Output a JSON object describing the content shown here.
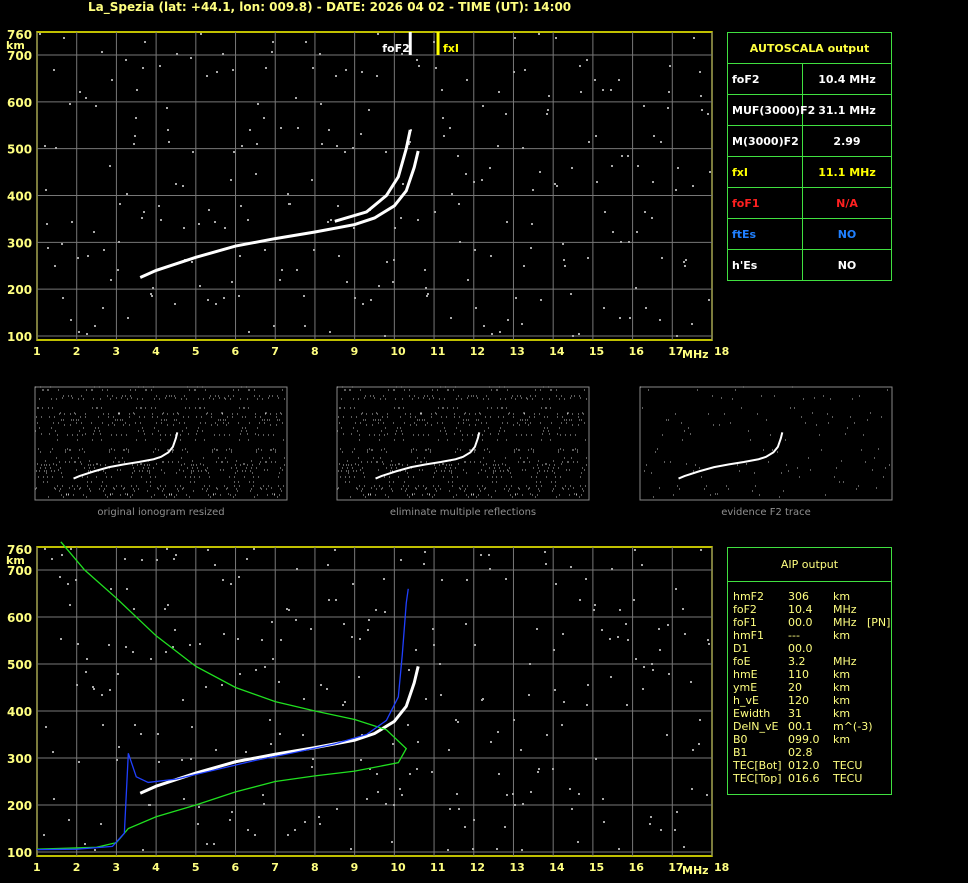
{
  "title": "La_Spezia (lat: +44.1, lon: 009.8) - DATE: 2026 04 02 - TIME (UT): 14:00",
  "autoscala": {
    "header": "AUTOSCALA output",
    "rows": [
      {
        "key": "foF2",
        "value": "10.4 MHz",
        "color": "#ffffff"
      },
      {
        "key": "MUF(3000)F2",
        "value": "31.1 MHz",
        "color": "#ffffff"
      },
      {
        "key": "M(3000)F2",
        "value": "2.99",
        "color": "#ffffff"
      },
      {
        "key": "fxI",
        "value": "11.1 MHz",
        "color": "#ffff00"
      },
      {
        "key": "foF1",
        "value": "N/A",
        "color": "#ff2020"
      },
      {
        "key": "ftEs",
        "value": "NO",
        "color": "#2080ff"
      },
      {
        "key": "h'Es",
        "value": "NO",
        "color": "#ffffff"
      }
    ]
  },
  "aip": {
    "header": "AIP output",
    "rows": [
      [
        "hmF2",
        "306",
        "km",
        ""
      ],
      [
        "foF2",
        "10.4",
        "MHz",
        ""
      ],
      [
        "foF1",
        "00.0",
        "MHz",
        "[PN]"
      ],
      [
        "hmF1",
        "---",
        "km",
        ""
      ],
      [
        "D1",
        "00.0",
        "",
        ""
      ],
      [
        "foE",
        "3.2",
        "MHz",
        ""
      ],
      [
        "hmE",
        "110",
        "km",
        ""
      ],
      [
        "ymE",
        "20",
        "km",
        ""
      ],
      [
        "h_vE",
        "120",
        "km",
        ""
      ],
      [
        "Ewidth",
        "31",
        "km",
        ""
      ],
      [
        "DelN_vE",
        "00.1",
        "m^(-3)",
        ""
      ],
      [
        "B0",
        "099.0",
        "km",
        ""
      ],
      [
        "B1",
        "02.8",
        "",
        ""
      ],
      [
        "TEC[Bot]",
        "012.0",
        "TECU",
        ""
      ],
      [
        "TEC[Top]",
        "016.6",
        "TECU",
        ""
      ]
    ]
  },
  "captions": [
    "original ionogram resized",
    "eliminate multiple reflections",
    "evidence F2 trace"
  ],
  "chart_data": [
    {
      "type": "scatter",
      "xlabel": "MHz",
      "ylabel": "km",
      "xlim": [
        1,
        18
      ],
      "ylim": [
        100,
        760
      ],
      "xticks": [
        "1",
        "2",
        "3",
        "4",
        "5",
        "6",
        "7",
        "8",
        "9",
        "10",
        "11",
        "12",
        "13",
        "14",
        "15",
        "16",
        "17",
        "18"
      ],
      "yticks": [
        "100",
        "200",
        "300",
        "400",
        "500",
        "600",
        "700",
        "760"
      ],
      "grid": true,
      "markers": [
        {
          "label": "foF2",
          "x": 10.4,
          "color": "#ffffff"
        },
        {
          "label": "fxI",
          "x": 11.1,
          "color": "#ffff00"
        }
      ],
      "traces": [
        {
          "color": "#ffffff",
          "points": [
            [
              3.6,
              225
            ],
            [
              4,
              240
            ],
            [
              5,
              268
            ],
            [
              6,
              292
            ],
            [
              7,
              308
            ],
            [
              8,
              322
            ],
            [
              9,
              338
            ],
            [
              9.5,
              352
            ],
            [
              10,
              378
            ],
            [
              10.3,
              410
            ],
            [
              10.5,
              460
            ],
            [
              10.6,
              495
            ]
          ]
        },
        {
          "color": "#ffffff",
          "points": [
            [
              8.5,
              345
            ],
            [
              9.3,
              365
            ],
            [
              9.8,
              400
            ],
            [
              10.1,
              440
            ],
            [
              10.3,
              500
            ],
            [
              10.4,
              540
            ]
          ]
        }
      ]
    },
    {
      "type": "line",
      "xlabel": "MHz",
      "ylabel": "km",
      "xlim": [
        1,
        18
      ],
      "ylim": [
        100,
        760
      ],
      "xticks": [
        "1",
        "2",
        "3",
        "4",
        "5",
        "6",
        "7",
        "8",
        "9",
        "10",
        "11",
        "12",
        "13",
        "14",
        "15",
        "16",
        "17",
        "18"
      ],
      "yticks": [
        "100",
        "200",
        "300",
        "400",
        "500",
        "600",
        "700",
        "760"
      ],
      "grid": true,
      "traces": [
        {
          "color": "#ffffff",
          "points": [
            [
              3.6,
              225
            ],
            [
              4,
              240
            ],
            [
              5,
              268
            ],
            [
              6,
              292
            ],
            [
              7,
              308
            ],
            [
              8,
              322
            ],
            [
              9,
              338
            ],
            [
              9.5,
              352
            ],
            [
              10,
              378
            ],
            [
              10.3,
              410
            ],
            [
              10.5,
              460
            ],
            [
              10.6,
              495
            ]
          ]
        },
        {
          "color": "#20e020",
          "points": [
            [
              1.6,
              760
            ],
            [
              2.2,
              700
            ],
            [
              3,
              640
            ],
            [
              4,
              560
            ],
            [
              5,
              495
            ],
            [
              6,
              450
            ],
            [
              7,
              420
            ],
            [
              8,
              400
            ],
            [
              9,
              382
            ],
            [
              9.8,
              360
            ],
            [
              10.3,
              320
            ],
            [
              10.1,
              290
            ],
            [
              9,
              272
            ],
            [
              8,
              262
            ],
            [
              7,
              250
            ],
            [
              6,
              228
            ],
            [
              5,
              200
            ],
            [
              4,
              175
            ],
            [
              3.3,
              150
            ],
            [
              3.1,
              130
            ],
            [
              3,
              120
            ],
            [
              2.5,
              110
            ],
            [
              1,
              106
            ]
          ]
        },
        {
          "color": "#2040ff",
          "points": [
            [
              1,
              105
            ],
            [
              2,
              106
            ],
            [
              2.9,
              112
            ],
            [
              3.2,
              140
            ],
            [
              3.3,
              310
            ],
            [
              3.5,
              260
            ],
            [
              3.8,
              248
            ],
            [
              4.5,
              255
            ],
            [
              5.5,
              275
            ],
            [
              6.5,
              295
            ],
            [
              7.5,
              312
            ],
            [
              8.5,
              330
            ],
            [
              9.3,
              350
            ],
            [
              9.8,
              380
            ],
            [
              10.1,
              430
            ],
            [
              10.2,
              520
            ],
            [
              10.3,
              630
            ],
            [
              10.35,
              660
            ]
          ]
        }
      ]
    }
  ]
}
